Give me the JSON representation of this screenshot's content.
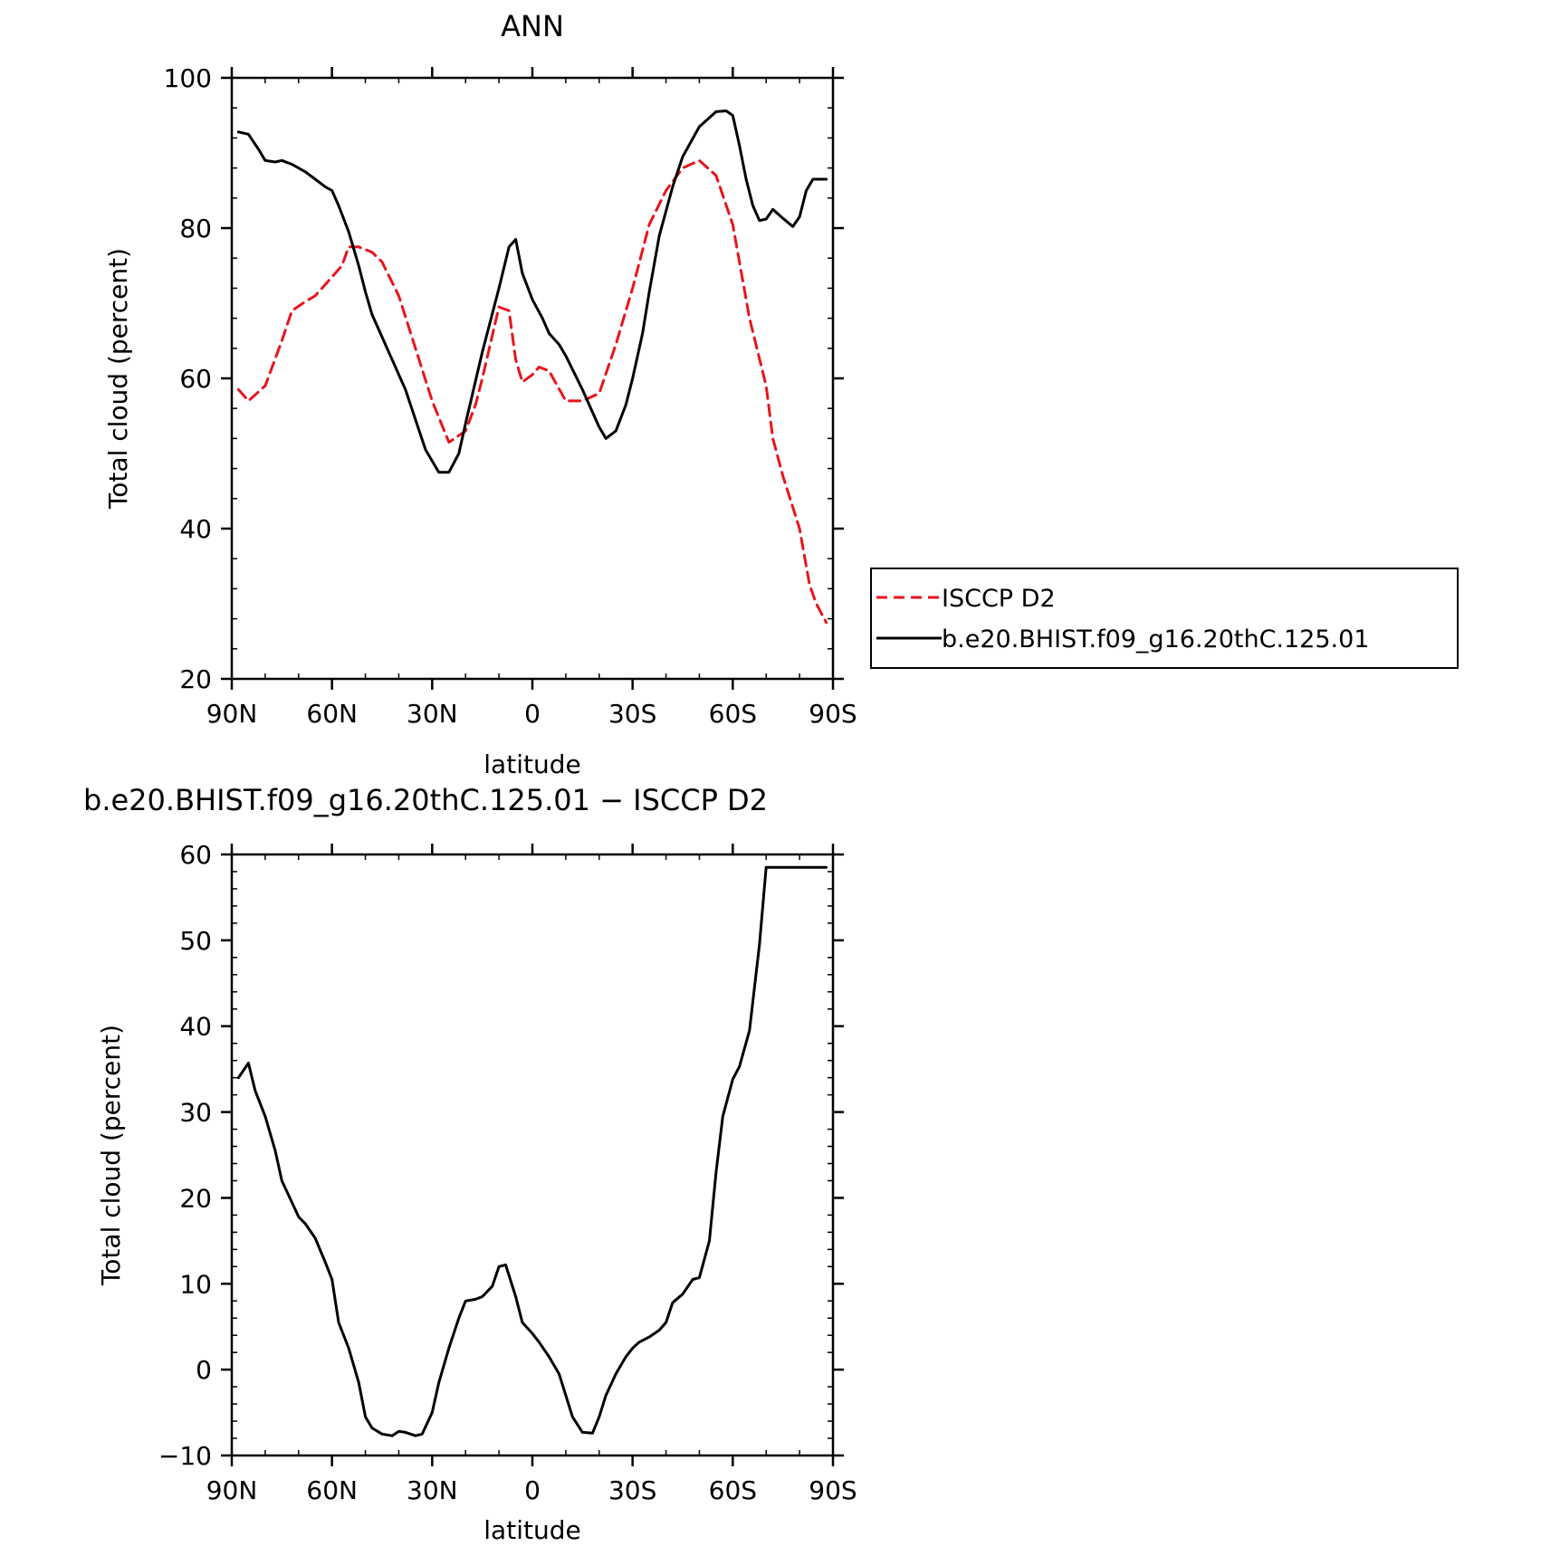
{
  "chart_data": [
    {
      "type": "line",
      "title": "ANN",
      "xlabel": "latitude",
      "ylabel": "Total cloud (percent)",
      "xlim": [
        90,
        -90
      ],
      "ylim": [
        20,
        100
      ],
      "x_ticks": [
        90,
        60,
        30,
        0,
        -30,
        -60,
        -90
      ],
      "x_tick_labels": [
        "90N",
        "60N",
        "30N",
        "0",
        "30S",
        "60S",
        "90S"
      ],
      "y_ticks": [
        20,
        40,
        60,
        80,
        100
      ],
      "y_tick_labels": [
        "20",
        "40",
        "60",
        "80",
        "100"
      ],
      "grid": false,
      "legend_position": "outside-right",
      "series": [
        {
          "name": "ISCCP D2",
          "color": "#e8141c",
          "dash": "dashed",
          "x": [
            88,
            85,
            80,
            75,
            72,
            68,
            65,
            60,
            57,
            55,
            52,
            48,
            45,
            40,
            35,
            30,
            25,
            20,
            17,
            15,
            10,
            7,
            5,
            3,
            0,
            -2,
            -5,
            -10,
            -15,
            -20,
            -25,
            -30,
            -35,
            -40,
            -45,
            -50,
            -55,
            -60,
            -65,
            -70,
            -72,
            -75,
            -80,
            -83,
            -85,
            -88
          ],
          "values": [
            58.5,
            57,
            59,
            65,
            69,
            70.2,
            71,
            73.5,
            75,
            77.5,
            77.5,
            76.8,
            75.5,
            71,
            64,
            57,
            51.5,
            53,
            56.5,
            60,
            69.5,
            69,
            62.5,
            59.5,
            60.5,
            61.5,
            61,
            57,
            57,
            58,
            64.5,
            72,
            80.5,
            85,
            88,
            89,
            87,
            80.5,
            68,
            59,
            52,
            47,
            40,
            32.5,
            30,
            27.5
          ]
        },
        {
          "name": "b.e20.BHIST.f09_g16.20thC.125.01",
          "color": "#000000",
          "dash": "solid",
          "x": [
            88,
            85,
            82,
            80,
            77,
            75,
            72,
            68,
            65,
            62,
            60,
            58,
            55,
            52,
            50,
            48,
            45,
            42,
            38,
            35,
            32,
            28,
            25,
            22,
            20,
            15,
            10,
            7,
            5,
            3,
            0,
            -3,
            -5,
            -8,
            -10,
            -15,
            -18,
            -20,
            -22,
            -25,
            -28,
            -30,
            -33,
            -35,
            -38,
            -42,
            -45,
            -50,
            -55,
            -58,
            -60,
            -62,
            -64,
            -66,
            -68,
            -70,
            -72,
            -75,
            -78,
            -80,
            -82,
            -84,
            -86,
            -88
          ],
          "values": [
            92.8,
            92.5,
            90.5,
            89,
            88.8,
            89,
            88.5,
            87.5,
            86.5,
            85.5,
            85,
            83,
            79.5,
            75,
            71.5,
            68.5,
            65.5,
            62.5,
            58.5,
            54.5,
            50.5,
            47.5,
            47.5,
            50,
            54,
            63.5,
            72,
            77.5,
            78.5,
            74,
            70.5,
            68,
            66,
            64.5,
            63,
            58.5,
            55.5,
            53.5,
            52,
            53,
            56.5,
            60,
            66,
            71.5,
            79,
            85.5,
            89.5,
            93.5,
            95.5,
            95.6,
            95,
            91,
            86.5,
            83,
            81,
            81.2,
            82.5,
            81.3,
            80.2,
            81.5,
            85,
            86.5,
            86.5,
            86.5
          ]
        }
      ]
    },
    {
      "type": "line",
      "title": "b.e20.BHIST.f09_g16.20thC.125.01 − ISCCP D2",
      "xlabel": "latitude",
      "ylabel": "Total cloud (percent)",
      "xlim": [
        90,
        -90
      ],
      "ylim": [
        -10,
        60
      ],
      "x_ticks": [
        90,
        60,
        30,
        0,
        -30,
        -60,
        -90
      ],
      "x_tick_labels": [
        "90N",
        "60N",
        "30N",
        "0",
        "30S",
        "60S",
        "90S"
      ],
      "y_ticks": [
        -10,
        0,
        10,
        20,
        30,
        40,
        50,
        60
      ],
      "y_tick_labels": [
        "−10",
        "0",
        "10",
        "20",
        "30",
        "40",
        "50",
        "60"
      ],
      "grid": false,
      "series": [
        {
          "color": "#000000",
          "dash": "solid",
          "x": [
            88,
            85,
            83,
            80,
            77,
            75,
            72,
            70,
            68,
            65,
            62,
            60,
            58,
            55,
            52,
            50,
            48,
            45,
            42,
            40,
            38,
            35,
            33,
            30,
            28,
            25,
            22,
            20,
            17,
            15,
            12,
            10,
            8,
            5,
            3,
            0,
            -2,
            -5,
            -8,
            -10,
            -12,
            -15,
            -18,
            -20,
            -22,
            -25,
            -28,
            -30,
            -32,
            -35,
            -38,
            -40,
            -42,
            -45,
            -48,
            -50,
            -53,
            -55,
            -57,
            -60,
            -62,
            -65,
            -68,
            -70,
            -72,
            -75,
            -77,
            -80,
            -83,
            -85,
            -88
          ],
          "values": [
            34,
            35.7,
            32.5,
            29.5,
            25.5,
            22,
            19.5,
            17.8,
            17,
            15.3,
            12.5,
            10.5,
            5.5,
            2.5,
            -1.5,
            -5.5,
            -6.8,
            -7.5,
            -7.7,
            -7.2,
            -7.3,
            -7.7,
            -7.5,
            -5,
            -1.5,
            2.5,
            6,
            8,
            8.2,
            8.5,
            9.7,
            12,
            12.2,
            8.5,
            5.5,
            4.2,
            3.2,
            1.5,
            -0.5,
            -3,
            -5.5,
            -7.3,
            -7.4,
            -5.5,
            -3,
            -0.5,
            1.5,
            2.5,
            3.2,
            3.8,
            4.6,
            5.5,
            7.8,
            8.8,
            10.5,
            10.7,
            15,
            23,
            29.5,
            33.8,
            35.3,
            39.5,
            49.5,
            58.5,
            58.5,
            58.5,
            58.5,
            58.5,
            58.5,
            58.5,
            58.5
          ]
        }
      ]
    }
  ]
}
